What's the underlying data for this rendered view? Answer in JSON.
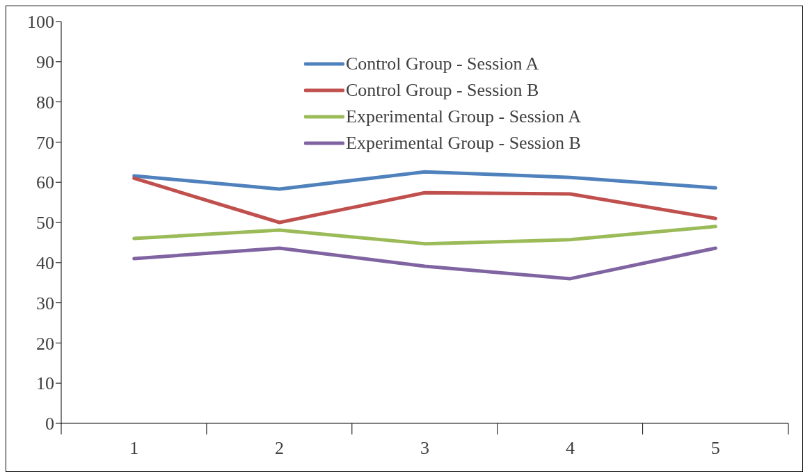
{
  "chart_data": {
    "type": "line",
    "categories": [
      "1",
      "2",
      "3",
      "4",
      "5"
    ],
    "series": [
      {
        "name": "Control Group - Session A",
        "color": "#4f81bd",
        "values": [
          61.6,
          58.3,
          62.6,
          61.2,
          58.6
        ]
      },
      {
        "name": "Control Group - Session B",
        "color": "#c0504d",
        "values": [
          61,
          50,
          57.4,
          57.1,
          51
        ]
      },
      {
        "name": "Experimental Group - Session A",
        "color": "#9bbb59",
        "values": [
          46,
          48.1,
          44.7,
          45.7,
          49
        ]
      },
      {
        "name": "Experimental Group - Session B",
        "color": "#8064a2",
        "values": [
          41,
          43.6,
          39.1,
          36,
          43.6
        ]
      }
    ],
    "ylim": [
      0,
      100
    ],
    "yticks": [
      0,
      10,
      20,
      30,
      40,
      50,
      60,
      70,
      80,
      90,
      100
    ],
    "grid": false,
    "legend": "top",
    "marker": "none",
    "line_style": "solid"
  }
}
